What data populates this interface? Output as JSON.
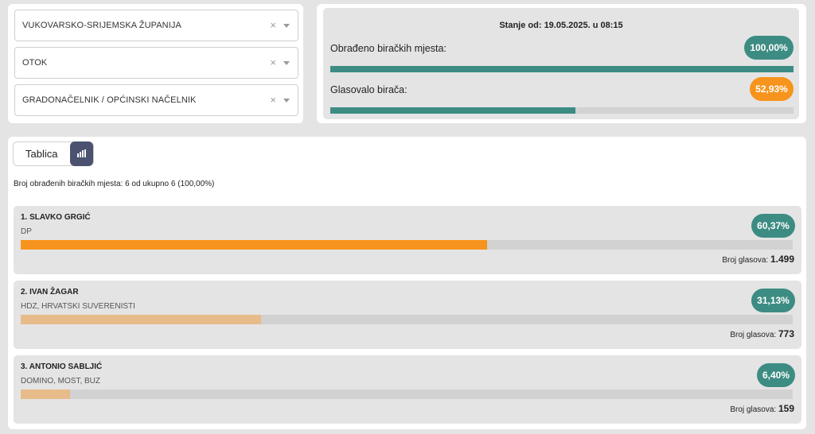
{
  "filters": [
    {
      "value": "VUKOVARSKO-SRIJEMSKA ŽUPANIJA"
    },
    {
      "value": "OTOK"
    },
    {
      "value": "GRADONAČELNIK / OPĆINSKI NAČELNIK"
    }
  ],
  "filter_clear_icon": "×",
  "status": {
    "stanje": "Stanje od: 19.05.2025. u 08:15",
    "processed_label": "Obrađeno biračkih mjesta:",
    "processed_value": "100,00%",
    "processed_fraction": 1.0,
    "turnout_label": "Glasovalo birača:",
    "turnout_value": "52,93%",
    "turnout_fraction": 0.5293
  },
  "view_toggle": {
    "table_label": "Tablica",
    "chart_icon": "bar-chart-icon"
  },
  "summary": "Broj obrađenih biračkih mjesta: 6 od ukupno 6 (100,00%)",
  "votes_label": "Broj glasova:",
  "candidates": [
    {
      "name": "1. SLAVKO GRGIĆ",
      "party": "DP",
      "percent": "60,37%",
      "fraction": 0.6037,
      "votes": "1.499",
      "color": "#f7941d"
    },
    {
      "name": "2. IVAN ŽAGAR",
      "party": "HDZ, HRVATSKI SUVERENISTI",
      "percent": "31,13%",
      "fraction": 0.3113,
      "votes": "773",
      "color": "#e8bb8a"
    },
    {
      "name": "3. ANTONIO SABLJIĆ",
      "party": "DOMINO, MOST, BUZ",
      "percent": "6,40%",
      "fraction": 0.064,
      "votes": "159",
      "color": "#e8bb8a"
    }
  ],
  "colors": {
    "teal": "#3d8c83",
    "orange": "#f7941d",
    "peach": "#e8bb8a",
    "nav": "#4a5270"
  }
}
